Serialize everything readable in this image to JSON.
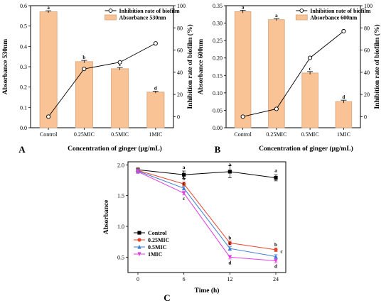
{
  "chart_data": [
    {
      "panel": "A",
      "type": "bar",
      "categories": [
        "Control",
        "0.25MIC",
        "0.5MIC",
        "1MIC"
      ],
      "series": [
        {
          "name": "Absorbance 530nm",
          "axis": "left",
          "values": [
            0.57,
            0.325,
            0.29,
            0.175
          ],
          "errors": [
            0.005,
            0.006,
            0.006,
            0.005
          ],
          "labels": [
            "a",
            "b",
            "c",
            "d"
          ]
        },
        {
          "name": "Inhibition rate of biofilm",
          "axis": "right",
          "type": "line",
          "values": [
            0,
            43,
            49,
            66
          ]
        }
      ],
      "xlabel": "Concentration of ginger (μg/mL)",
      "ylabel": "Absorbance 530nm",
      "y2label": "Inhibition rate of biofilm (%)",
      "ylim": [
        0,
        0.6
      ],
      "y2lim": [
        -10,
        100
      ],
      "yticks": [
        "0.0",
        "0.1",
        "0.2",
        "0.3",
        "0.4",
        "0.5",
        "0.6"
      ],
      "y2ticks": [
        "0",
        "20",
        "40",
        "60",
        "80",
        "100"
      ],
      "legend": "top-right",
      "colors": {
        "bar": "#FAC395",
        "barEdge": "#D6A27A",
        "line": "#000000"
      }
    },
    {
      "panel": "B",
      "type": "bar",
      "categories": [
        "Control",
        "0.25MIC",
        "0.5MIC",
        "1MIC"
      ],
      "series": [
        {
          "name": "Absorbance 600nm",
          "axis": "left",
          "values": [
            0.333,
            0.31,
            0.157,
            0.075
          ],
          "errors": [
            0.004,
            0.003,
            0.004,
            0.004
          ],
          "labels": [
            "a",
            "a",
            "c",
            "d"
          ]
        },
        {
          "name": "Inhibition rate of biofilm",
          "axis": "right",
          "type": "line",
          "values": [
            0,
            7,
            53,
            77
          ]
        }
      ],
      "xlabel": "Concentration of ginger (μg/mL)",
      "ylabel": "Absorbance 600nm",
      "y2label": "Inhibition rate of biofilm (%)",
      "ylim": [
        0,
        0.35
      ],
      "y2lim": [
        -10,
        100
      ],
      "yticks": [
        "0.00",
        "0.05",
        "0.10",
        "0.15",
        "0.20",
        "0.25",
        "0.30",
        "0.35"
      ],
      "y2ticks": [
        "0",
        "20",
        "40",
        "60",
        "80",
        "100"
      ],
      "legend": "top-right",
      "colors": {
        "bar": "#FAC395",
        "barEdge": "#D6A27A",
        "line": "#000000"
      }
    },
    {
      "panel": "C",
      "type": "line",
      "x": [
        0,
        6,
        12,
        24
      ],
      "xticks": [
        "0",
        "6",
        "12",
        "24"
      ],
      "series": [
        {
          "name": "Control",
          "color": "#000000",
          "marker": "square",
          "values": [
            1.92,
            1.84,
            1.89,
            1.79
          ],
          "errors": [
            0.03,
            0.06,
            0.1,
            0.05
          ],
          "labels": [
            "",
            "a",
            "a",
            "a"
          ]
        },
        {
          "name": "0.25MIC",
          "color": "#E8442D",
          "marker": "circle",
          "values": [
            1.91,
            1.69,
            0.73,
            0.62
          ],
          "errors": [
            0.03,
            0.03,
            0.03,
            0.03
          ],
          "labels": [
            "",
            "b",
            "b",
            "b"
          ]
        },
        {
          "name": "0.5MIC",
          "color": "#3B7BD4",
          "marker": "triangle",
          "values": [
            1.9,
            1.62,
            0.64,
            0.51
          ],
          "errors": [
            0.03,
            0.03,
            0.03,
            0.03
          ],
          "labels": [
            "",
            "c",
            "c",
            "c"
          ]
        },
        {
          "name": "1MIC",
          "color": "#E040E0",
          "marker": "triangle-down",
          "values": [
            1.89,
            1.54,
            0.5,
            0.44
          ],
          "errors": [
            0.03,
            0.03,
            0.03,
            0.03
          ],
          "labels": [
            "",
            "c",
            "d",
            "d"
          ]
        }
      ],
      "xlabel": "Time (h)",
      "ylabel": "Absorbance",
      "ylim": [
        0.25,
        2.05
      ],
      "yticks": [
        "0.5",
        "1.0",
        "1.5",
        "2.0"
      ],
      "legend": "bottom-left"
    }
  ]
}
